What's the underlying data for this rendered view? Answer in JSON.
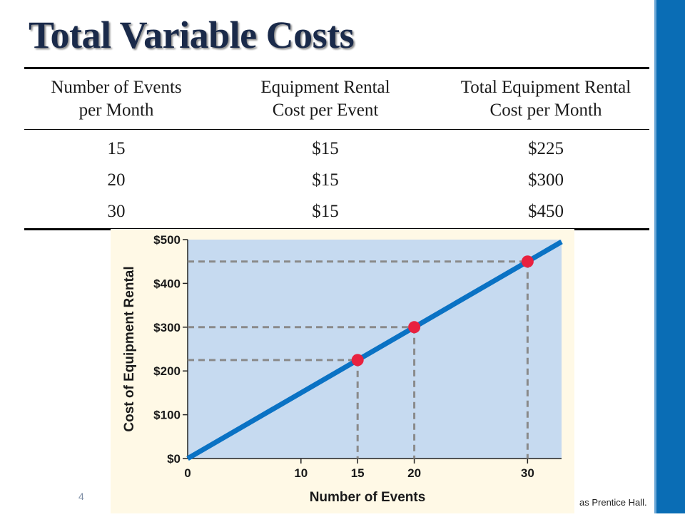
{
  "slide": {
    "title": "Total Variable Costs",
    "page_number": "4",
    "copyright_fragment": "as Prentice Hall.",
    "accent_color": "#0a6db5"
  },
  "table": {
    "headers": [
      [
        "Number of Events",
        "per Month"
      ],
      [
        "Equipment Rental",
        "Cost per Event"
      ],
      [
        "Total Equipment Rental",
        "Cost per Month"
      ]
    ],
    "rows": [
      [
        "15",
        "$15",
        "$225"
      ],
      [
        "20",
        "$15",
        "$300"
      ],
      [
        "30",
        "$15",
        "$450"
      ]
    ]
  },
  "chart_data": {
    "type": "line",
    "xlabel": "Number of Events",
    "ylabel": "Cost of Equipment Rental",
    "xlim": [
      0,
      33
    ],
    "ylim": [
      0,
      500
    ],
    "x_ticks": [
      0,
      10,
      15,
      20,
      30
    ],
    "x_tick_labels": [
      "0",
      "10",
      "15",
      "20",
      "30"
    ],
    "y_ticks": [
      0,
      100,
      200,
      300,
      400,
      500
    ],
    "y_tick_labels": [
      "$0",
      "$100",
      "$200",
      "$300",
      "$400",
      "$500"
    ],
    "line": {
      "x": [
        0,
        33
      ],
      "y": [
        0,
        495
      ],
      "color": "#0a72c4"
    },
    "points": [
      {
        "x": 15,
        "y": 225
      },
      {
        "x": 20,
        "y": 300
      },
      {
        "x": 30,
        "y": 450
      }
    ],
    "point_color": "#e8213f",
    "plot_background": "#c6daf0",
    "guide_color": "#8a8a8a",
    "grid": false
  }
}
